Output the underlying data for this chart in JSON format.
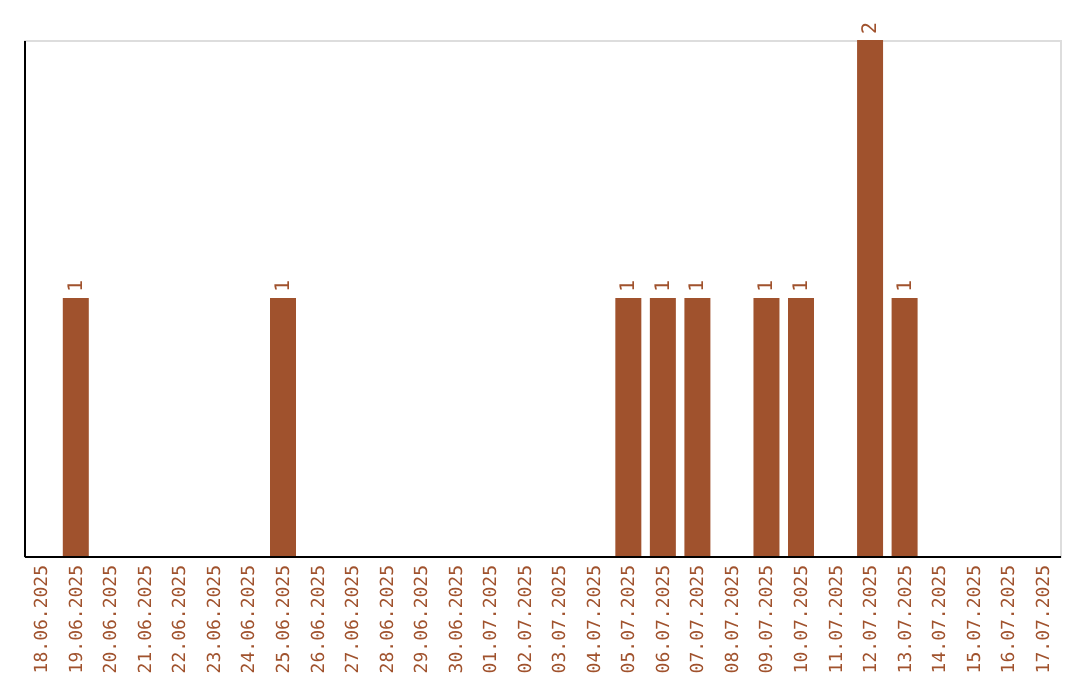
{
  "chart_data": {
    "type": "bar",
    "categories": [
      "18.06.2025",
      "19.06.2025",
      "20.06.2025",
      "21.06.2025",
      "22.06.2025",
      "23.06.2025",
      "24.06.2025",
      "25.06.2025",
      "26.06.2025",
      "27.06.2025",
      "28.06.2025",
      "29.06.2025",
      "30.06.2025",
      "01.07.2025",
      "02.07.2025",
      "03.07.2025",
      "04.07.2025",
      "05.07.2025",
      "06.07.2025",
      "07.07.2025",
      "08.07.2025",
      "09.07.2025",
      "10.07.2025",
      "11.07.2025",
      "12.07.2025",
      "13.07.2025",
      "14.07.2025",
      "15.07.2025",
      "16.07.2025",
      "17.07.2025"
    ],
    "values": [
      0,
      1,
      0,
      0,
      0,
      0,
      0,
      1,
      0,
      0,
      0,
      0,
      0,
      0,
      0,
      0,
      0,
      1,
      1,
      1,
      0,
      1,
      1,
      0,
      2,
      1,
      0,
      0,
      0,
      0
    ],
    "value_labels": [
      null,
      "1",
      null,
      null,
      null,
      null,
      null,
      "1",
      null,
      null,
      null,
      null,
      null,
      null,
      null,
      null,
      null,
      "1",
      "1",
      "1",
      null,
      "1",
      "1",
      null,
      "2",
      "1",
      null,
      null,
      null,
      null
    ],
    "color": "#a0522d",
    "tick_labels": "x",
    "grid": false
  }
}
